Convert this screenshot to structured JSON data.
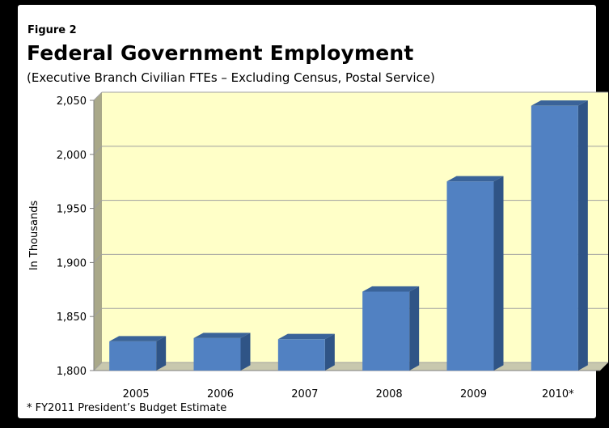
{
  "figure_label": "Figure 2",
  "footnote": "* FY2011 President’s Budget Estimate",
  "chart_data": {
    "type": "bar",
    "title": "Federal Government Employment",
    "subtitle": "(Executive Branch Civilian FTEs – Excluding Census, Postal Service)",
    "xlabel": "",
    "ylabel": "In Thousands",
    "categories": [
      "2005",
      "2006",
      "2007",
      "2008",
      "2009",
      "2010*"
    ],
    "values": [
      1827,
      1830,
      1829,
      1873,
      1975,
      2045
    ],
    "ylim": [
      1800,
      2050
    ],
    "yticks": [
      1800,
      1850,
      1900,
      1950,
      2000,
      2050
    ],
    "ytick_labels": [
      "1,800",
      "1,850",
      "1,900",
      "1,950",
      "2,000",
      "2,050"
    ],
    "grid": true,
    "legend": "none",
    "colors": {
      "bar_front": "#5181c2",
      "bar_side": "#2f5486",
      "bar_top": "#3a6399",
      "plot_back": "#ffffc8",
      "plot_wall": "#a9a889",
      "plot_floor": "#c8c8ae",
      "gridline": "#a0a0a0"
    }
  }
}
